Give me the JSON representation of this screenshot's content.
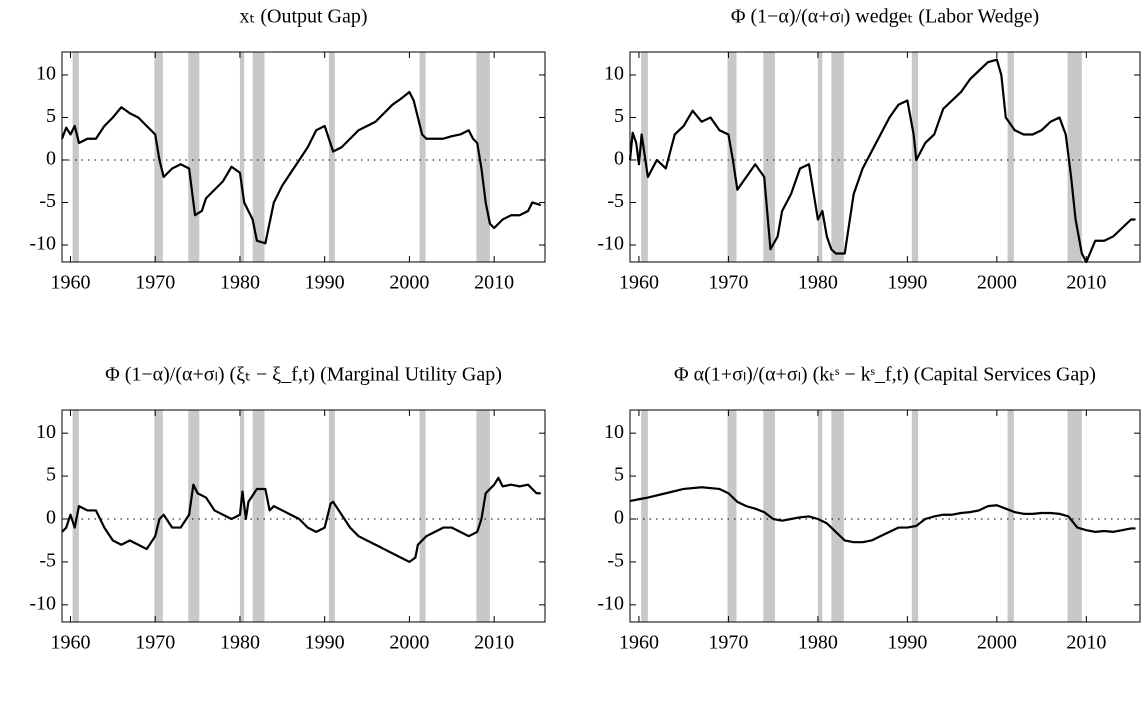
{
  "chart_data": [
    {
      "type": "line",
      "title": "xₜ (Output Gap)",
      "color": "#000000",
      "shade_color": "#c8c8c8",
      "xlim": [
        1959,
        2016
      ],
      "xticks": [
        1960,
        1970,
        1980,
        1990,
        2000,
        2010
      ],
      "ylim": [
        -12,
        12.7
      ],
      "yticks": [
        -10,
        -5,
        0,
        5,
        10
      ],
      "shaded_regions": [
        [
          1960.25,
          1961.0
        ],
        [
          1969.9,
          1970.9
        ],
        [
          1973.9,
          1975.2
        ],
        [
          1980.0,
          1980.5
        ],
        [
          1981.5,
          1982.9
        ],
        [
          1990.5,
          1991.2
        ],
        [
          2001.2,
          2001.9
        ],
        [
          2007.9,
          2009.5
        ]
      ],
      "x": [
        1959,
        1959.5,
        1960,
        1960.5,
        1961,
        1962,
        1963,
        1964,
        1965,
        1966,
        1967,
        1968,
        1969,
        1970,
        1970.5,
        1971,
        1972,
        1973,
        1974,
        1974.7,
        1975.5,
        1976,
        1977,
        1978,
        1979,
        1980,
        1980.5,
        1981.5,
        1982,
        1983,
        1984,
        1985,
        1986,
        1987,
        1988,
        1989,
        1990,
        1990.5,
        1991,
        1992,
        1993,
        1994,
        1995,
        1996,
        1997,
        1998,
        1999,
        2000,
        2000.5,
        2001,
        2001.5,
        2002,
        2003,
        2004,
        2005,
        2006,
        2007,
        2007.5,
        2008,
        2008.5,
        2009,
        2009.5,
        2010,
        2011,
        2012,
        2013,
        2014,
        2014.5,
        2015.5
      ],
      "values": [
        2.5,
        3.8,
        3,
        4,
        2,
        2.5,
        2.5,
        4,
        5,
        6.2,
        5.5,
        5,
        4,
        3,
        0,
        -2,
        -1,
        -0.5,
        -1,
        -6.5,
        -6,
        -4.5,
        -3.5,
        -2.5,
        -0.8,
        -1.5,
        -5,
        -7,
        -9.5,
        -9.8,
        -5,
        -3,
        -1.5,
        0,
        1.5,
        3.5,
        4,
        2.5,
        1,
        1.5,
        2.5,
        3.5,
        4,
        4.5,
        5.5,
        6.5,
        7.2,
        8,
        7,
        5,
        3,
        2.5,
        2.5,
        2.5,
        2.8,
        3,
        3.5,
        2.5,
        2,
        -1,
        -5,
        -7.5,
        -8,
        -7,
        -6.5,
        -6.5,
        -6,
        -5,
        -5.3
      ]
    },
    {
      "type": "line",
      "title": "Φ (1−α)/(α+σₗ) wedgeₜ (Labor Wedge)",
      "color": "#000000",
      "shade_color": "#c8c8c8",
      "xlim": [
        1959,
        2016
      ],
      "xticks": [
        1960,
        1970,
        1980,
        1990,
        2000,
        2010
      ],
      "ylim": [
        -12,
        12.7
      ],
      "yticks": [
        -10,
        -5,
        0,
        5,
        10
      ],
      "shaded_regions": [
        [
          1960.25,
          1961.0
        ],
        [
          1969.9,
          1970.9
        ],
        [
          1973.9,
          1975.2
        ],
        [
          1980.0,
          1980.5
        ],
        [
          1981.5,
          1982.9
        ],
        [
          1990.5,
          1991.2
        ],
        [
          2001.2,
          2001.9
        ],
        [
          2007.9,
          2009.5
        ]
      ],
      "x": [
        1959,
        1959.3,
        1959.7,
        1960,
        1960.3,
        1961,
        1962,
        1963,
        1964,
        1965,
        1966,
        1967,
        1968,
        1969,
        1970,
        1970.5,
        1971,
        1972,
        1973,
        1974,
        1974.7,
        1975.5,
        1976,
        1977,
        1978,
        1979,
        1980,
        1980.5,
        1981,
        1981.5,
        1982,
        1983,
        1984,
        1985,
        1986,
        1987,
        1988,
        1989,
        1990,
        1990.7,
        1991,
        1992,
        1993,
        1994,
        1995,
        1996,
        1997,
        1998,
        1999,
        2000,
        2000.5,
        2001,
        2002,
        2003,
        2004,
        2005,
        2006,
        2007,
        2007.7,
        2008.3,
        2008.8,
        2009.5,
        2010,
        2011,
        2012,
        2013,
        2014,
        2015,
        2015.5
      ],
      "values": [
        0,
        3.2,
        2,
        -0.5,
        3,
        -2,
        0,
        -1,
        3,
        4,
        5.8,
        4.5,
        5,
        3.5,
        3,
        0,
        -3.5,
        -2,
        -0.5,
        -2,
        -10.5,
        -9,
        -6,
        -4,
        -1,
        -0.5,
        -7,
        -6,
        -9,
        -10.5,
        -11,
        -11,
        -4,
        -1,
        1,
        3,
        5,
        6.5,
        7,
        3,
        0,
        2,
        3,
        6,
        7,
        8,
        9.5,
        10.5,
        11.5,
        11.8,
        10,
        5,
        3.5,
        3,
        3,
        3.5,
        4.5,
        5,
        3,
        -2,
        -7,
        -11,
        -12,
        -9.5,
        -9.5,
        -9,
        -8,
        -7,
        -7
      ]
    },
    {
      "type": "line",
      "title": "Φ (1−α)/(α+σₗ) (ξₜ − ξ_f,t) (Marginal Utility Gap)",
      "color": "#000000",
      "shade_color": "#c8c8c8",
      "xlim": [
        1959,
        2016
      ],
      "xticks": [
        1960,
        1970,
        1980,
        1990,
        2000,
        2010
      ],
      "ylim": [
        -12,
        12.7
      ],
      "yticks": [
        -10,
        -5,
        0,
        5,
        10
      ],
      "shaded_regions": [
        [
          1960.25,
          1961.0
        ],
        [
          1969.9,
          1970.9
        ],
        [
          1973.9,
          1975.2
        ],
        [
          1980.0,
          1980.5
        ],
        [
          1981.5,
          1982.9
        ],
        [
          1990.5,
          1991.2
        ],
        [
          2001.2,
          2001.9
        ],
        [
          2007.9,
          2009.5
        ]
      ],
      "x": [
        1959,
        1959.5,
        1960,
        1960.5,
        1961,
        1962,
        1963,
        1964,
        1965,
        1966,
        1967,
        1968,
        1969,
        1970,
        1970.5,
        1971,
        1972,
        1973,
        1974,
        1974.5,
        1975,
        1976,
        1977,
        1978,
        1979,
        1980,
        1980.3,
        1980.7,
        1981,
        1982,
        1983,
        1983.5,
        1984,
        1985,
        1986,
        1987,
        1988,
        1989,
        1990,
        1990.7,
        1991,
        1992,
        1993,
        1994,
        1995,
        1996,
        1997,
        1998,
        1999,
        2000,
        2000.7,
        2001,
        2002,
        2003,
        2004,
        2005,
        2006,
        2007,
        2008,
        2008.5,
        2009,
        2010,
        2010.5,
        2011,
        2012,
        2013,
        2014,
        2015,
        2015.5
      ],
      "values": [
        -1.5,
        -1,
        0.5,
        -1,
        1.5,
        1,
        1,
        -1,
        -2.5,
        -3,
        -2.5,
        -3,
        -3.5,
        -2,
        0,
        0.5,
        -1,
        -1,
        0.5,
        4,
        3,
        2.5,
        1,
        0.5,
        0,
        0.5,
        3.2,
        0,
        2,
        3.5,
        3.5,
        1,
        1.5,
        1,
        0.5,
        0,
        -1,
        -1.5,
        -1,
        1.8,
        2,
        0.5,
        -1,
        -2,
        -2.5,
        -3,
        -3.5,
        -4,
        -4.5,
        -5,
        -4.5,
        -3,
        -2,
        -1.5,
        -1,
        -1,
        -1.5,
        -2,
        -1.5,
        0,
        3,
        4,
        4.8,
        3.8,
        4,
        3.8,
        4,
        3,
        3
      ]
    },
    {
      "type": "line",
      "title": "Φ α(1+σₗ)/(α+σₗ) (kₜˢ − kˢ_f,t) (Capital Services Gap)",
      "color": "#000000",
      "shade_color": "#c8c8c8",
      "xlim": [
        1959,
        2016
      ],
      "xticks": [
        1960,
        1970,
        1980,
        1990,
        2000,
        2010
      ],
      "ylim": [
        -12,
        12.7
      ],
      "yticks": [
        -10,
        -5,
        0,
        5,
        10
      ],
      "shaded_regions": [
        [
          1960.25,
          1961.0
        ],
        [
          1969.9,
          1970.9
        ],
        [
          1973.9,
          1975.2
        ],
        [
          1980.0,
          1980.5
        ],
        [
          1981.5,
          1982.9
        ],
        [
          1990.5,
          1991.2
        ],
        [
          2001.2,
          2001.9
        ],
        [
          2007.9,
          2009.5
        ]
      ],
      "x": [
        1959,
        1960,
        1961,
        1963,
        1965,
        1967,
        1969,
        1970,
        1971,
        1972,
        1973,
        1974,
        1975,
        1976,
        1977,
        1978,
        1979,
        1980,
        1981,
        1982,
        1983,
        1984,
        1985,
        1986,
        1987,
        1988,
        1989,
        1990,
        1991,
        1992,
        1993,
        1994,
        1995,
        1996,
        1997,
        1998,
        1999,
        2000,
        2001,
        2002,
        2003,
        2004,
        2005,
        2006,
        2007,
        2008,
        2009,
        2010,
        2011,
        2012,
        2013,
        2014,
        2015,
        2015.5
      ],
      "values": [
        2.1,
        2.3,
        2.5,
        3,
        3.5,
        3.7,
        3.5,
        3,
        2,
        1.5,
        1.2,
        0.8,
        0,
        -0.2,
        0,
        0.2,
        0.3,
        0,
        -0.5,
        -1.5,
        -2.5,
        -2.7,
        -2.7,
        -2.5,
        -2,
        -1.5,
        -1,
        -1,
        -0.8,
        0,
        0.3,
        0.5,
        0.5,
        0.7,
        0.8,
        1,
        1.5,
        1.6,
        1.2,
        0.8,
        0.6,
        0.6,
        0.7,
        0.7,
        0.6,
        0.3,
        -1,
        -1.3,
        -1.5,
        -1.4,
        -1.5,
        -1.3,
        -1.1,
        -1.1
      ]
    }
  ]
}
